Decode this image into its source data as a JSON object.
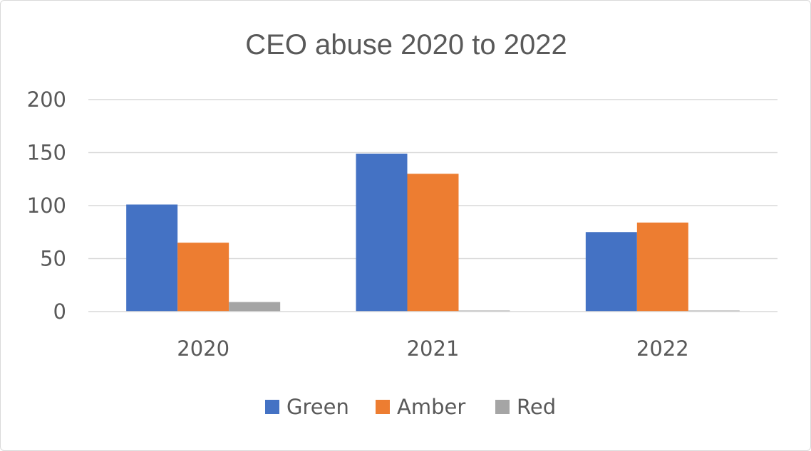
{
  "chart_data": {
    "type": "bar",
    "title": "CEO abuse 2020 to 2022",
    "xlabel": "",
    "ylabel": "",
    "categories": [
      "2020",
      "2021",
      "2022"
    ],
    "series": [
      {
        "name": "Green",
        "color": "#4472c4",
        "values": [
          101,
          149,
          75
        ]
      },
      {
        "name": "Amber",
        "color": "#ed7d31",
        "values": [
          65,
          130,
          84
        ]
      },
      {
        "name": "Red",
        "color": "#a5a5a5",
        "values": [
          9,
          1,
          1
        ]
      }
    ],
    "ylim": [
      0,
      200
    ],
    "yticks": [
      "0",
      "50",
      "100",
      "150",
      "200"
    ],
    "grid": true,
    "gridColor": "#d9d9d9",
    "legend": "bottom"
  }
}
